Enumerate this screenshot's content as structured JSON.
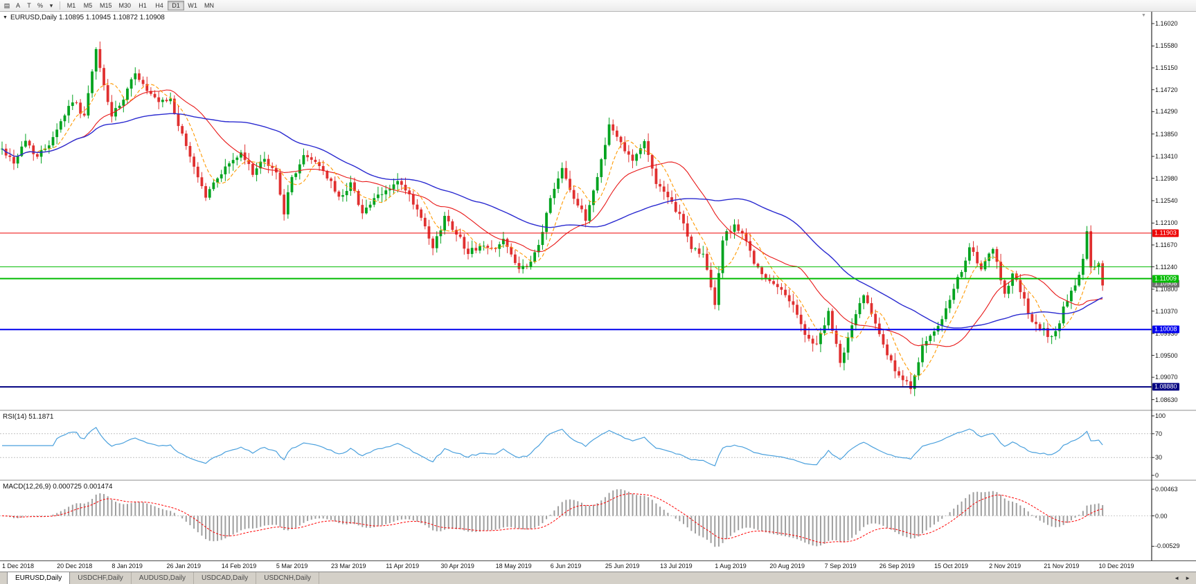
{
  "toolbar": {
    "icons": [
      {
        "name": "chart-window-icon",
        "glyph": "▤"
      },
      {
        "name": "annotation-tool-icon",
        "glyph": "A"
      },
      {
        "name": "text-tool-icon",
        "glyph": "T"
      },
      {
        "name": "indicators-icon",
        "glyph": "%"
      },
      {
        "name": "dropdown-caret-icon",
        "glyph": "▾"
      }
    ],
    "timeframes": [
      {
        "label": "M1"
      },
      {
        "label": "M5"
      },
      {
        "label": "M15"
      },
      {
        "label": "M30"
      },
      {
        "label": "H1"
      },
      {
        "label": "H4"
      },
      {
        "label": "D1",
        "active": true
      },
      {
        "label": "W1"
      },
      {
        "label": "MN"
      }
    ]
  },
  "main_chart": {
    "header": "EURUSD,Daily 1.10895 1.10945 1.10872 1.10908",
    "symbol": "EURUSD",
    "period": "Daily"
  },
  "rsi_pane": {
    "header": "RSI(14) 51.1871",
    "scale_labels": [
      {
        "value": 100,
        "text": "100"
      },
      {
        "value": 70,
        "text": "70"
      },
      {
        "value": 30,
        "text": "30"
      },
      {
        "value": 0,
        "text": "0"
      }
    ]
  },
  "macd_pane": {
    "header": "MACD(12,26,9) 0.000725 0.001474",
    "scale_labels": [
      {
        "value": 0.00463,
        "text": "0.00463"
      },
      {
        "value": 0,
        "text": "0.00"
      },
      {
        "value": -0.00529,
        "text": "-0.00529"
      }
    ]
  },
  "tab_bar": {
    "tabs": [
      {
        "label": "EURUSD,Daily",
        "active": true
      },
      {
        "label": "USDCHF,Daily"
      },
      {
        "label": "AUDUSD,Daily"
      },
      {
        "label": "USDCAD,Daily"
      },
      {
        "label": "USDCNH,Daily"
      }
    ],
    "scroll_icons": [
      {
        "name": "tabs-scroll-left-icon",
        "glyph": "◄"
      },
      {
        "name": "tabs-scroll-right-icon",
        "glyph": "►"
      }
    ]
  },
  "chart_data": {
    "type": "candlestick",
    "symbol": "EURUSD",
    "timeframe": "Daily",
    "bars": 282,
    "bars_per_date_label": 14,
    "y_axis_range": [
      1.0842,
      1.16252
    ],
    "current_quote": {
      "open": 1.10895,
      "high": 1.10945,
      "low": 1.10872,
      "close": 1.10908
    },
    "price_axis_labels": [
      "1.16020",
      "1.15580",
      "1.15150",
      "1.14720",
      "1.14290",
      "1.13850",
      "1.13410",
      "1.12980",
      "1.12540",
      "1.12100",
      "1.11670",
      "1.11240",
      "1.10800",
      "1.10370",
      "1.09930",
      "1.09500",
      "1.09070",
      "1.08630"
    ],
    "x_axis_dates": [
      "1 Dec 2018",
      "20 Dec 2018",
      "8 Jan 2019",
      "26 Jan 2019",
      "14 Feb 2019",
      "5 Mar 2019",
      "23 Mar 2019",
      "11 Apr 2019",
      "30 Apr 2019",
      "18 May 2019",
      "6 Jun 2019",
      "25 Jun 2019",
      "13 Jul 2019",
      "1 Aug 2019",
      "20 Aug 2019",
      "7 Sep 2019",
      "26 Sep 2019",
      "15 Oct 2019",
      "2 Nov 2019",
      "21 Nov 2019",
      "10 Dec 2019"
    ],
    "levels": [
      {
        "price": 1.11903,
        "label": "1.11903",
        "color": "#ee0000",
        "line_width": 1
      },
      {
        "price": 1.1124,
        "label": "",
        "color": "#00bb00",
        "line_width": 1
      },
      {
        "price": 1.11009,
        "label": "1.11009",
        "color": "#00bb00",
        "line_width": 2
      },
      {
        "price": 1.10908,
        "label": "1.10908",
        "color": "#707070",
        "line_width": 0
      },
      {
        "price": 1.10008,
        "label": "1.10008",
        "color": "#0000ee",
        "line_width": 2
      },
      {
        "price": 1.0888,
        "label": "1.08880",
        "color": "#000080",
        "line_width": 2
      }
    ],
    "colors": {
      "up_candle": "#00a31f",
      "down_candle": "#e03030",
      "ma_fast": "#ff9900",
      "ma_medium": "#e81717",
      "ma_slow": "#2a2ad0",
      "rsi_line": "#4aa0dd",
      "macd_histogram": "#9e9e9e",
      "macd_signal": "#ff0000"
    },
    "indicators": [
      {
        "name": "MA-fast",
        "period": 7,
        "style": "dashed"
      },
      {
        "name": "MA-medium",
        "period": 21,
        "style": "solid"
      },
      {
        "name": "MA-slow",
        "period": 50,
        "style": "solid"
      },
      {
        "name": "RSI",
        "period": 14,
        "current": 51.1871,
        "levels": [
          70,
          30
        ]
      },
      {
        "name": "MACD",
        "fast": 12,
        "slow": 26,
        "signal": 9,
        "current_macd": 0.000725,
        "current_signal": 0.001474
      }
    ],
    "price_anchors": [
      [
        0,
        1.1355
      ],
      [
        3,
        1.133
      ],
      [
        6,
        1.1372
      ],
      [
        9,
        1.134
      ],
      [
        12,
        1.1368
      ],
      [
        15,
        1.141
      ],
      [
        18,
        1.1452
      ],
      [
        21,
        1.142
      ],
      [
        24,
        1.1548
      ],
      [
        26,
        1.148
      ],
      [
        28,
        1.142
      ],
      [
        31,
        1.145
      ],
      [
        34,
        1.1508
      ],
      [
        37,
        1.1468
      ],
      [
        40,
        1.1445
      ],
      [
        43,
        1.1452
      ],
      [
        46,
        1.138
      ],
      [
        49,
        1.1322
      ],
      [
        52,
        1.1262
      ],
      [
        55,
        1.13
      ],
      [
        58,
        1.1328
      ],
      [
        61,
        1.1345
      ],
      [
        64,
        1.131
      ],
      [
        67,
        1.1332
      ],
      [
        70,
        1.1308
      ],
      [
        72,
        1.1232
      ],
      [
        74,
        1.1298
      ],
      [
        77,
        1.134
      ],
      [
        80,
        1.1332
      ],
      [
        83,
        1.1302
      ],
      [
        86,
        1.1258
      ],
      [
        89,
        1.1288
      ],
      [
        92,
        1.1232
      ],
      [
        95,
        1.1255
      ],
      [
        98,
        1.1272
      ],
      [
        101,
        1.1292
      ],
      [
        104,
        1.1262
      ],
      [
        107,
        1.1218
      ],
      [
        110,
        1.1158
      ],
      [
        113,
        1.1222
      ],
      [
        116,
        1.1192
      ],
      [
        119,
        1.1152
      ],
      [
        122,
        1.1165
      ],
      [
        125,
        1.1158
      ],
      [
        128,
        1.1178
      ],
      [
        131,
        1.1128
      ],
      [
        134,
        1.1118
      ],
      [
        137,
        1.1165
      ],
      [
        140,
        1.1258
      ],
      [
        143,
        1.1322
      ],
      [
        146,
        1.1258
      ],
      [
        149,
        1.1218
      ],
      [
        152,
        1.1302
      ],
      [
        155,
        1.1402
      ],
      [
        158,
        1.1368
      ],
      [
        161,
        1.1335
      ],
      [
        164,
        1.1368
      ],
      [
        167,
        1.1292
      ],
      [
        170,
        1.1255
      ],
      [
        173,
        1.1228
      ],
      [
        176,
        1.1162
      ],
      [
        179,
        1.1148
      ],
      [
        182,
        1.1048
      ],
      [
        184,
        1.1178
      ],
      [
        187,
        1.1208
      ],
      [
        190,
        1.1172
      ],
      [
        193,
        1.1118
      ],
      [
        196,
        1.1092
      ],
      [
        199,
        1.1078
      ],
      [
        202,
        1.1052
      ],
      [
        205,
        1.0988
      ],
      [
        208,
        1.0972
      ],
      [
        211,
        1.1032
      ],
      [
        214,
        1.0935
      ],
      [
        217,
        1.1008
      ],
      [
        220,
        1.1072
      ],
      [
        223,
        1.1018
      ],
      [
        226,
        1.0952
      ],
      [
        229,
        1.0905
      ],
      [
        232,
        1.0888
      ],
      [
        235,
        1.0968
      ],
      [
        238,
        1.0992
      ],
      [
        241,
        1.1038
      ],
      [
        244,
        1.1098
      ],
      [
        247,
        1.1162
      ],
      [
        250,
        1.1118
      ],
      [
        253,
        1.1158
      ],
      [
        256,
        1.1072
      ],
      [
        258,
        1.1112
      ],
      [
        260,
        1.1078
      ],
      [
        263,
        1.1012
      ],
      [
        266,
        1.0998
      ],
      [
        268,
        1.0984
      ],
      [
        270,
        1.1018
      ],
      [
        272,
        1.1062
      ],
      [
        274,
        1.1082
      ],
      [
        276,
        1.1138
      ],
      [
        277,
        1.1192
      ],
      [
        278,
        1.1118
      ],
      [
        280,
        1.1132
      ],
      [
        281,
        1.1091
      ]
    ]
  }
}
